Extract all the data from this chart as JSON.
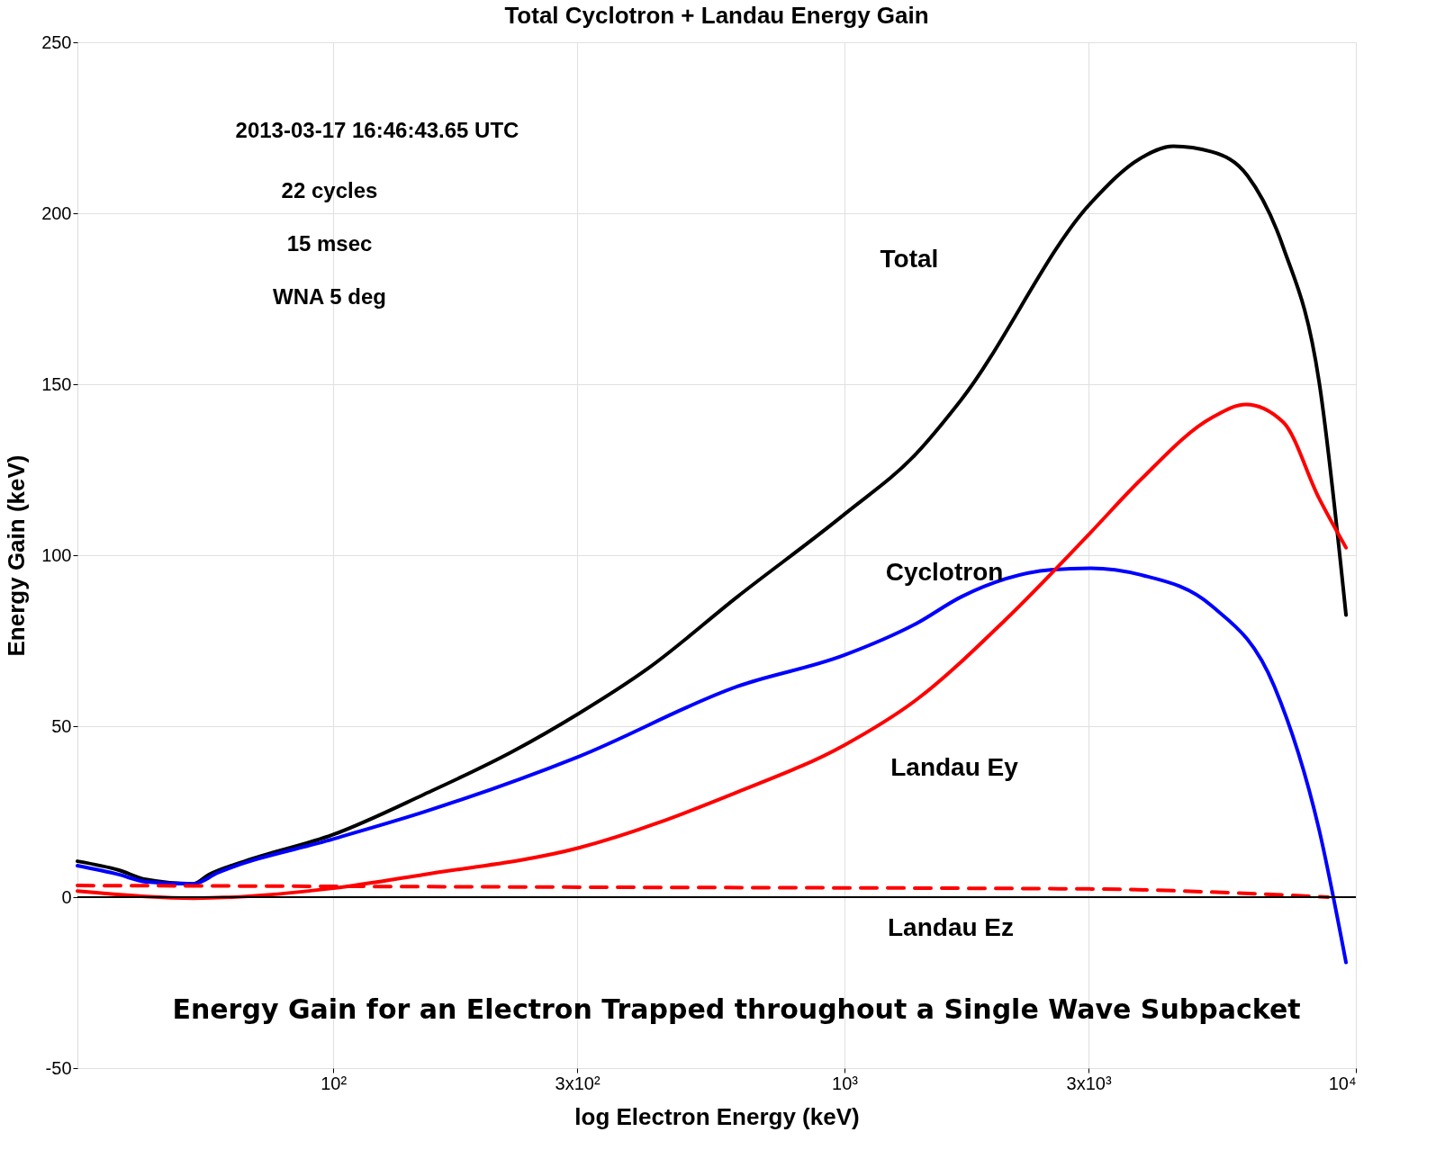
{
  "chart_data": {
    "type": "line",
    "title": "Total Cyclotron + Landau Energy Gain",
    "xlabel": "log Electron Energy (keV)",
    "ylabel": "Energy Gain (keV)",
    "log": "x",
    "grid": true,
    "xlim": [
      31.6,
      10000
    ],
    "xticks": [
      {
        "value": 100,
        "label": "10²"
      },
      {
        "value": 300,
        "label": "3x10²"
      },
      {
        "value": 1000,
        "label": "10³"
      },
      {
        "value": 3000,
        "label": "3x10³"
      },
      {
        "value": 10000,
        "label": "10⁴"
      }
    ],
    "ylim": [
      -50,
      250
    ],
    "yticks": [
      -50,
      0,
      50,
      100,
      150,
      200,
      250
    ],
    "series": [
      {
        "color": "#000000",
        "line_style": "solid",
        "x": [
          31.6,
          38.1,
          43.0,
          53.3,
          57.1,
          67.1,
          100,
          150.3,
          224.9,
          302,
          411.9,
          616.6,
          1000,
          1381,
          1690,
          3031,
          3784,
          4395,
          5224,
          6138,
          7213,
          8475,
          9566
        ],
        "values": [
          10.5,
          7.9,
          5.2,
          3.9,
          6.6,
          10.5,
          18.3,
          30,
          42.7,
          53.7,
          66.8,
          87.8,
          112,
          129.7,
          145.4,
          203,
          216,
          219.6,
          218,
          211,
          190,
          150.7,
          82.5
        ]
      },
      {
        "color": "#0000ff",
        "line_style": "solid",
        "x": [
          31.6,
          38.1,
          43.0,
          53.3,
          59.4,
          100,
          150.3,
          302,
          616.6,
          1000,
          1381,
          1690,
          2529,
          3031,
          3784,
          5224,
          6929,
          8475,
          9566
        ],
        "values": [
          9.2,
          6.6,
          4.5,
          3.9,
          7.1,
          17,
          24.9,
          41.1,
          61.6,
          70.8,
          80,
          87.8,
          95.7,
          96.2,
          94.3,
          85.2,
          61.6,
          19.7,
          -19.1
        ]
      },
      {
        "color": "#ff0000",
        "line_style": "solid",
        "x": [
          31.6,
          53.3,
          100,
          150.3,
          302,
          616.6,
          1000,
          1381,
          2066,
          3031,
          3784,
          5224,
          6095,
          7213,
          8475,
          9566
        ],
        "values": [
          1.8,
          -0.3,
          2.6,
          6.6,
          14.4,
          30.7,
          44.5,
          57.7,
          81.2,
          106.7,
          121.9,
          140.2,
          144.1,
          138.9,
          116.6,
          102.2
        ]
      },
      {
        "color": "#ff0000",
        "line_style": "dashed",
        "x": [
          31.6,
          336.6,
          3031,
          5666,
          8825
        ],
        "values": [
          3.4,
          2.9,
          2.4,
          1.3,
          0
        ]
      }
    ],
    "ref_lines": [
      {
        "axis": "y",
        "value": 0,
        "color": "#000000",
        "line_style": "solid"
      }
    ],
    "annotations": [
      "Total",
      "Cyclotron",
      "Landau Ey",
      "Landau Ez",
      "2013-03-17 16:46:43.65 UTC",
      "22 cycles",
      "15 msec",
      "WNA 5 deg",
      "Energy Gain for an Electron Trapped throughout a Single Wave Subpacket"
    ]
  }
}
